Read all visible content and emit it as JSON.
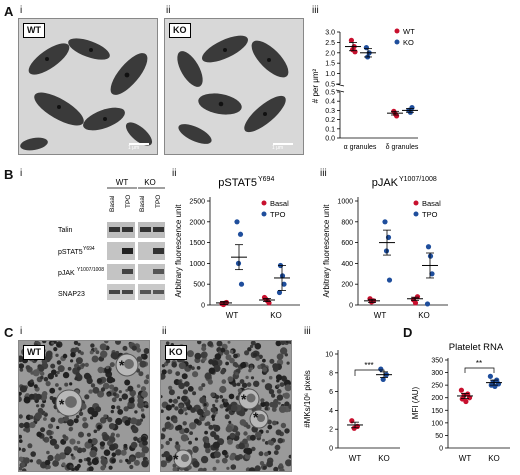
{
  "panels": {
    "A": "A",
    "B": "B",
    "C": "C",
    "D": "D",
    "sub_i": "i",
    "sub_ii": "ii",
    "sub_iii": "iii"
  },
  "A": {
    "wt_tag": "WT",
    "ko_tag": "KO",
    "scale_wt": "1 μm",
    "scale_ko": "1 μm",
    "legend": [
      "WT",
      "KO"
    ],
    "ylabel": "# per μm²",
    "xlabels": [
      "α granules",
      "δ granules"
    ],
    "upper_ticks": [
      "3.0",
      "2.5",
      "2.0",
      "1.5",
      "1.0",
      "0.5"
    ],
    "lower_ticks": [
      "0.5",
      "0.4",
      "0.3",
      "0.2",
      "0.1",
      "0.0"
    ]
  },
  "B": {
    "blot_headers": [
      "WT",
      "KO"
    ],
    "lane_labels": [
      "Basal",
      "TPO",
      "Basal",
      "TPO"
    ],
    "row_labels": [
      "Talin",
      "pSTAT5",
      "pJAK",
      "SNAP23"
    ],
    "row_superscripts": [
      "",
      "Y694",
      "Y1007/1008",
      ""
    ],
    "ii_title": "pSTAT5",
    "ii_title_sup": "Y694",
    "iii_title": "pJAK",
    "iii_title_sup": "Y1007/1008",
    "ylabel": "Arbitrary fluorescence unit",
    "legend": [
      "Basal",
      "TPO"
    ],
    "xlabels": [
      "WT",
      "KO"
    ]
  },
  "C": {
    "wt_tag": "WT",
    "ko_tag": "KO",
    "asterisk": "*",
    "ylabel": "#MKs/10⁶ pixels",
    "xlabels": [
      "WT",
      "KO"
    ],
    "sig": "***"
  },
  "D": {
    "title": "Platelet RNA",
    "ylabel": "MFI (AU)",
    "xlabels": [
      "WT",
      "KO"
    ],
    "sig": "**"
  },
  "colors": {
    "wt": "#c8102e",
    "ko": "#1f4e9c"
  },
  "chart_data": [
    {
      "id": "A-iii",
      "type": "scatter",
      "broken_axis": true,
      "categories": [
        "α granules",
        "δ granules"
      ],
      "ylabel": "# per μm²",
      "upper_range": [
        0.5,
        3.0
      ],
      "lower_range": [
        0.0,
        0.5
      ],
      "series": [
        {
          "name": "WT",
          "points": [
            [
              0,
              2.6
            ],
            [
              0,
              2.3
            ],
            [
              0,
              2.15
            ],
            [
              0,
              2.05
            ],
            [
              1,
              0.29
            ],
            [
              1,
              0.26
            ],
            [
              1,
              0.24
            ]
          ],
          "means": [
            2.3,
            0.27
          ]
        },
        {
          "name": "KO",
          "points": [
            [
              0,
              2.25
            ],
            [
              0,
              2.0
            ],
            [
              0,
              1.8
            ],
            [
              1,
              0.33
            ],
            [
              1,
              0.3
            ],
            [
              1,
              0.28
            ]
          ],
          "means": [
            2.0,
            0.3
          ]
        }
      ]
    },
    {
      "id": "B-ii",
      "type": "scatter",
      "title": "pSTAT5 Y694",
      "ylabel": "Arbitrary fluorescence unit",
      "categories": [
        "WT",
        "KO"
      ],
      "ylim": [
        0,
        2500
      ],
      "series": [
        {
          "name": "Basal",
          "points": [
            [
              0,
              30
            ],
            [
              0,
              50
            ],
            [
              0,
              10
            ],
            [
              0,
              60
            ],
            [
              1,
              150
            ],
            [
              1,
              100
            ],
            [
              1,
              50
            ],
            [
              1,
              180
            ]
          ]
        },
        {
          "name": "TPO",
          "points": [
            [
              0,
              2000
            ],
            [
              0,
              1700
            ],
            [
              0,
              1000
            ],
            [
              0,
              500
            ],
            [
              1,
              950
            ],
            [
              1,
              700
            ],
            [
              1,
              500
            ],
            [
              1,
              300
            ]
          ]
        }
      ],
      "means": [
        [
          0,
          50
        ],
        [
          0,
          1150
        ],
        [
          1,
          120
        ],
        [
          1,
          650
        ]
      ]
    },
    {
      "id": "B-iii",
      "type": "scatter",
      "title": "pJAK Y1007/1008",
      "ylabel": "Arbitrary fluorescence unit",
      "categories": [
        "WT",
        "KO"
      ],
      "ylim": [
        0,
        1000
      ],
      "series": [
        {
          "name": "Basal",
          "points": [
            [
              0,
              60
            ],
            [
              0,
              40
            ],
            [
              0,
              30
            ],
            [
              1,
              80
            ],
            [
              1,
              50
            ],
            [
              1,
              20
            ]
          ]
        },
        {
          "name": "TPO",
          "points": [
            [
              0,
              800
            ],
            [
              0,
              650
            ],
            [
              0,
              520
            ],
            [
              0,
              240
            ],
            [
              1,
              560
            ],
            [
              1,
              470
            ],
            [
              1,
              300
            ],
            [
              1,
              10
            ]
          ]
        }
      ],
      "means": [
        [
          0,
          40
        ],
        [
          0,
          600
        ],
        [
          1,
          60
        ],
        [
          1,
          380
        ]
      ]
    },
    {
      "id": "C-iii",
      "type": "scatter",
      "ylabel": "#MKs/10⁶ pixels",
      "categories": [
        "WT",
        "KO"
      ],
      "ylim": [
        0,
        10
      ],
      "series": [
        {
          "name": "WT",
          "points": [
            [
              0,
              2.9
            ],
            [
              0,
              2.3
            ],
            [
              0,
              2.1
            ]
          ],
          "mean": 2.45
        },
        {
          "name": "KO",
          "points": [
            [
              1,
              8.4
            ],
            [
              1,
              7.8
            ],
            [
              1,
              7.3
            ]
          ],
          "mean": 7.8
        }
      ],
      "significance": "***"
    },
    {
      "id": "D",
      "type": "scatter",
      "title": "Platelet RNA",
      "ylabel": "MFI (AU)",
      "categories": [
        "WT",
        "KO"
      ],
      "ylim": [
        0,
        350
      ],
      "series": [
        {
          "name": "WT",
          "points": [
            [
              0,
              230
            ],
            [
              0,
              215
            ],
            [
              0,
              210
            ],
            [
              0,
              200
            ],
            [
              0,
              195
            ],
            [
              0,
              185
            ]
          ],
          "mean": 207
        },
        {
          "name": "KO",
          "points": [
            [
              1,
              285
            ],
            [
              1,
              270
            ],
            [
              1,
              262
            ],
            [
              1,
              255
            ],
            [
              1,
              250
            ],
            [
              1,
              245
            ]
          ],
          "mean": 260
        }
      ],
      "significance": "**"
    }
  ]
}
